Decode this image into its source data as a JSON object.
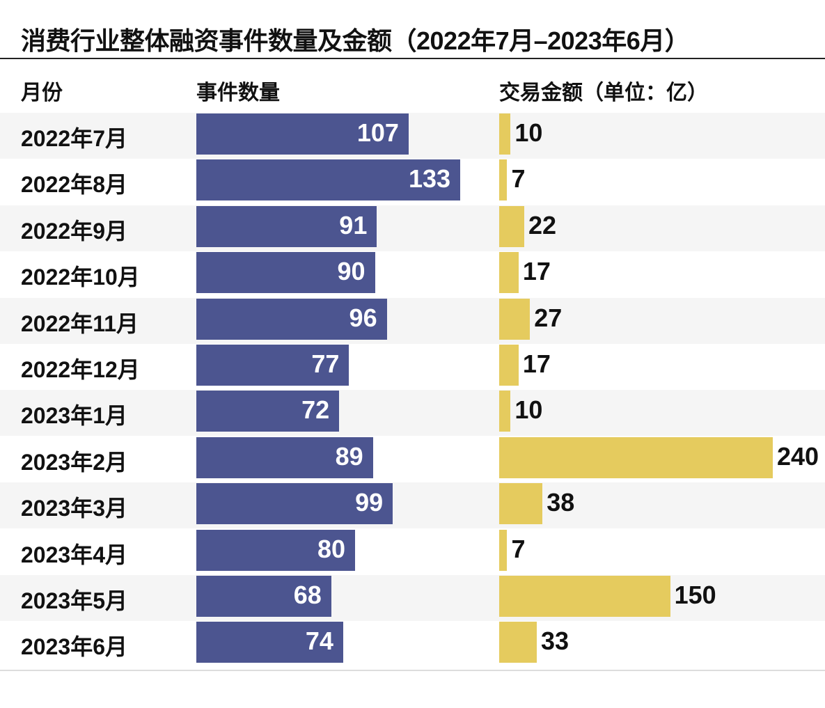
{
  "chart_data": {
    "type": "bar",
    "title": "消费行业整体融资事件数量及金额（2022年7月–2023年6月）",
    "columns": [
      "月份",
      "事件数量",
      "交易金额（单位：亿）"
    ],
    "categories": [
      "2022年7月",
      "2022年8月",
      "2022年9月",
      "2022年10月",
      "2022年11月",
      "2022年12月",
      "2023年1月",
      "2023年2月",
      "2023年3月",
      "2023年4月",
      "2023年5月",
      "2023年6月"
    ],
    "series": [
      {
        "name": "事件数量",
        "values": [
          107,
          133,
          91,
          90,
          96,
          77,
          72,
          89,
          99,
          80,
          68,
          74
        ],
        "color": "#4c5590"
      },
      {
        "name": "交易金额（单位：亿）",
        "values": [
          10,
          7,
          22,
          17,
          27,
          17,
          10,
          240,
          38,
          7,
          150,
          33
        ],
        "color": "#e5cb5e"
      }
    ],
    "orientation": "horizontal",
    "grid": false
  }
}
